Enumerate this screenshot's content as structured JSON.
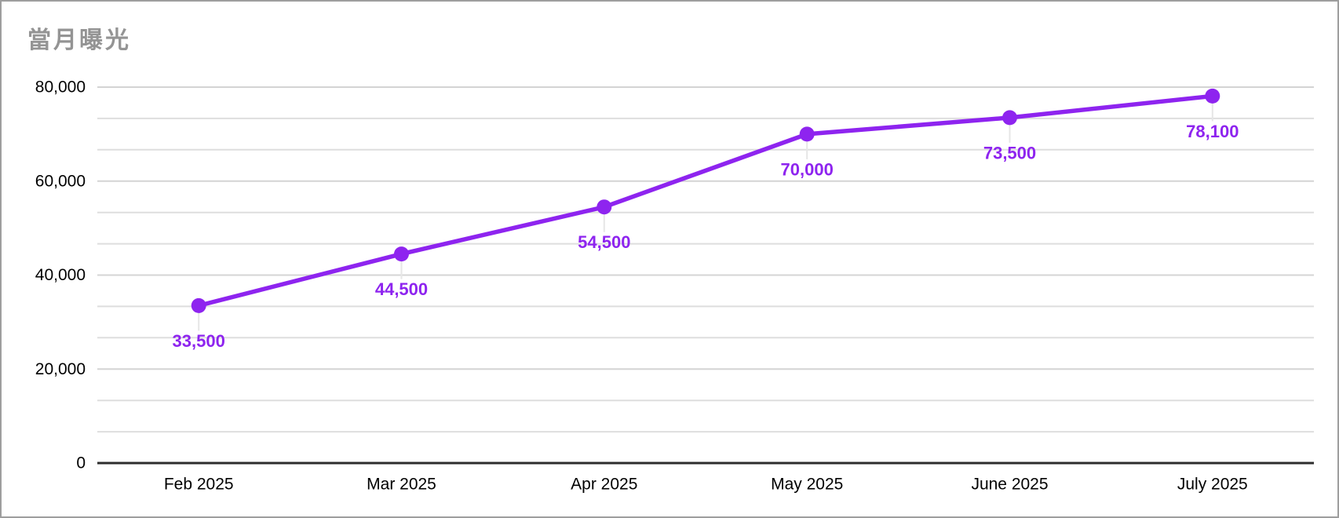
{
  "title": "當月曝光",
  "colors": {
    "background": "#ffffff",
    "frame_border": "#9e9e9e",
    "title_text": "#949494",
    "axis_text": "#000000",
    "gridline_major": "#d4d4d4",
    "gridline_minor": "#dedede",
    "axis_line": "#2d2d2d",
    "leader_line": "#e6e6e6",
    "series_line": "#8e24ef",
    "data_label": "#8e24ef"
  },
  "chart_data": {
    "type": "line",
    "title": "當月曝光",
    "categories": [
      "Feb 2025",
      "Mar 2025",
      "Apr 2025",
      "May 2025",
      "June 2025",
      "July 2025"
    ],
    "series": [
      {
        "name": "當月曝光",
        "values": [
          33500,
          44500,
          54500,
          70000,
          73500,
          78100
        ],
        "labels": [
          "33,500",
          "44,500",
          "54,500",
          "70,000",
          "73,500",
          "78,100"
        ]
      }
    ],
    "xlabel": "",
    "ylabel": "",
    "ylim": [
      0,
      80000
    ],
    "y_ticks": [
      {
        "value": 0,
        "label": "0"
      },
      {
        "value": 20000,
        "label": "20,000"
      },
      {
        "value": 40000,
        "label": "40,000"
      },
      {
        "value": 60000,
        "label": "60,000"
      },
      {
        "value": 80000,
        "label": "80,000"
      }
    ],
    "y_gridline_divisions": 12,
    "y_major_every": 3,
    "grid": true,
    "legend": "none",
    "point_markers": true,
    "data_labels_position": "below"
  }
}
